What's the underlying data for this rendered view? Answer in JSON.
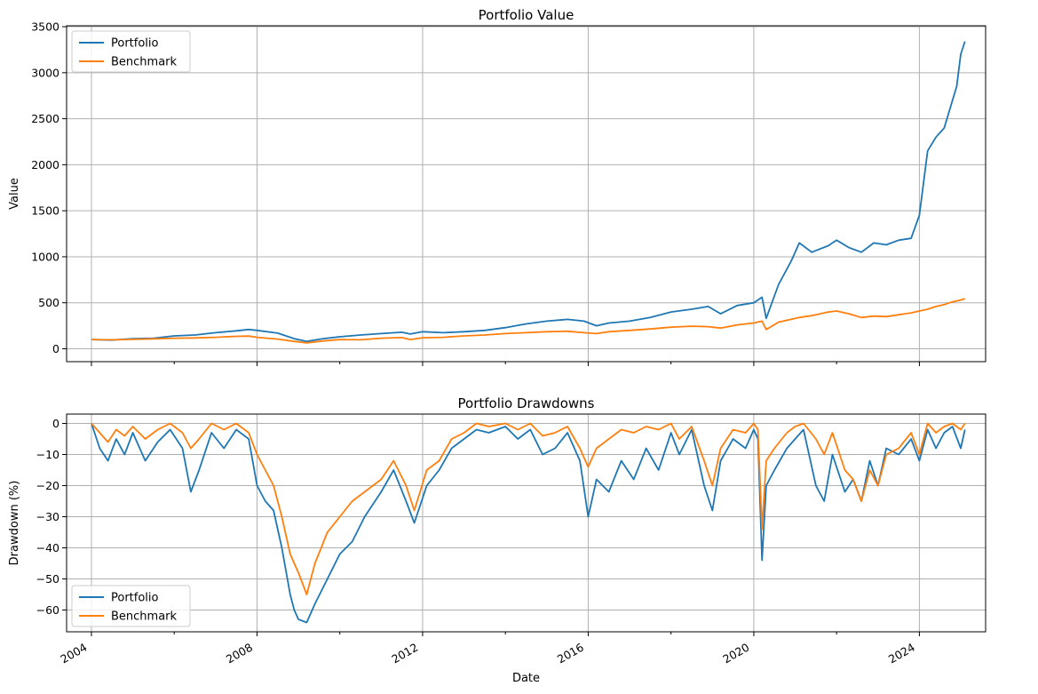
{
  "colors": {
    "portfolio": "#1f77b4",
    "benchmark": "#ff7f0e",
    "grid": "#b0b0b0"
  },
  "chart_data": [
    {
      "type": "line",
      "title": "Portfolio Value",
      "xlabel": "",
      "ylabel": "Value",
      "xlim": [
        2003.4,
        2025.6
      ],
      "ylim": [
        -140,
        3510
      ],
      "x_ticks": [
        2004,
        2008,
        2012,
        2016,
        2020,
        2024
      ],
      "y_ticks": [
        0,
        500,
        1000,
        1500,
        2000,
        2500,
        3000,
        3500
      ],
      "y_tick_labels": [
        "0",
        "500",
        "1000",
        "1500",
        "2000",
        "2500",
        "3000",
        "3500"
      ],
      "grid": true,
      "legend": "upper left",
      "legend_items": [
        "Portfolio",
        "Benchmark"
      ],
      "series": [
        {
          "name": "Portfolio",
          "color": "#1f77b4",
          "x": [
            2004.0,
            2004.5,
            2005.0,
            2005.5,
            2006.0,
            2006.5,
            2007.0,
            2007.5,
            2007.8,
            2008.0,
            2008.5,
            2008.9,
            2009.2,
            2009.6,
            2010.0,
            2010.5,
            2011.0,
            2011.5,
            2011.7,
            2012.0,
            2012.5,
            2013.0,
            2013.5,
            2014.0,
            2014.5,
            2015.0,
            2015.5,
            2015.9,
            2016.2,
            2016.5,
            2017.0,
            2017.5,
            2018.0,
            2018.5,
            2018.9,
            2019.2,
            2019.6,
            2020.0,
            2020.2,
            2020.3,
            2020.6,
            2020.9,
            2021.1,
            2021.4,
            2021.8,
            2022.0,
            2022.3,
            2022.6,
            2022.9,
            2023.2,
            2023.5,
            2023.8,
            2024.0,
            2024.2,
            2024.4,
            2024.6,
            2024.8,
            2024.9,
            2025.0,
            2025.1
          ],
          "values": [
            100,
            95,
            110,
            115,
            140,
            150,
            175,
            195,
            210,
            200,
            170,
            110,
            80,
            110,
            130,
            150,
            165,
            180,
            160,
            185,
            175,
            185,
            200,
            230,
            270,
            300,
            320,
            300,
            250,
            280,
            300,
            340,
            400,
            430,
            460,
            380,
            470,
            500,
            560,
            330,
            700,
            950,
            1150,
            1050,
            1120,
            1180,
            1100,
            1050,
            1150,
            1130,
            1180,
            1200,
            1450,
            2150,
            2300,
            2400,
            2700,
            2850,
            3200,
            3340
          ]
        },
        {
          "name": "Benchmark",
          "color": "#ff7f0e",
          "x": [
            2004.0,
            2004.5,
            2005.0,
            2005.5,
            2006.0,
            2006.5,
            2007.0,
            2007.5,
            2007.8,
            2008.0,
            2008.5,
            2008.9,
            2009.2,
            2009.6,
            2010.0,
            2010.5,
            2011.0,
            2011.5,
            2011.7,
            2012.0,
            2012.5,
            2013.0,
            2013.5,
            2014.0,
            2014.5,
            2015.0,
            2015.5,
            2015.9,
            2016.2,
            2016.5,
            2017.0,
            2017.5,
            2018.0,
            2018.5,
            2018.9,
            2019.2,
            2019.6,
            2020.0,
            2020.2,
            2020.3,
            2020.6,
            2020.9,
            2021.1,
            2021.4,
            2021.8,
            2022.0,
            2022.3,
            2022.6,
            2022.9,
            2023.2,
            2023.5,
            2023.8,
            2024.0,
            2024.2,
            2024.4,
            2024.6,
            2024.8,
            2024.9,
            2025.0,
            2025.1
          ],
          "values": [
            100,
            98,
            102,
            108,
            115,
            118,
            125,
            135,
            138,
            125,
            105,
            80,
            65,
            85,
            100,
            98,
            115,
            122,
            100,
            120,
            125,
            140,
            150,
            165,
            175,
            185,
            190,
            175,
            165,
            185,
            200,
            215,
            235,
            245,
            240,
            225,
            260,
            280,
            300,
            210,
            290,
            320,
            340,
            360,
            400,
            410,
            380,
            340,
            355,
            350,
            370,
            390,
            410,
            430,
            460,
            480,
            510,
            520,
            530,
            545
          ]
        }
      ]
    },
    {
      "type": "line",
      "title": "Portfolio Drawdowns",
      "xlabel": "Date",
      "ylabel": "Drawdown (%)",
      "xlim": [
        2003.4,
        2025.6
      ],
      "ylim": [
        -67,
        3
      ],
      "x_ticks": [
        2004,
        2008,
        2012,
        2016,
        2020,
        2024
      ],
      "x_tick_labels": [
        "2004",
        "2008",
        "2012",
        "2016",
        "2020",
        "2024"
      ],
      "y_ticks": [
        0,
        -10,
        -20,
        -30,
        -40,
        -50,
        -60
      ],
      "y_tick_labels": [
        "0",
        "−10",
        "−20",
        "−30",
        "−40",
        "−50",
        "−60"
      ],
      "grid": true,
      "legend": "lower left",
      "legend_items": [
        "Portfolio",
        "Benchmark"
      ],
      "series": [
        {
          "name": "Portfolio",
          "color": "#1f77b4",
          "x": [
            2004.0,
            2004.2,
            2004.4,
            2004.6,
            2004.8,
            2005.0,
            2005.3,
            2005.6,
            2005.9,
            2006.2,
            2006.4,
            2006.6,
            2006.9,
            2007.2,
            2007.5,
            2007.8,
            2008.0,
            2008.2,
            2008.4,
            2008.6,
            2008.8,
            2008.9,
            2009.0,
            2009.2,
            2009.4,
            2009.7,
            2010.0,
            2010.3,
            2010.6,
            2011.0,
            2011.3,
            2011.6,
            2011.8,
            2012.1,
            2012.4,
            2012.7,
            2013.0,
            2013.3,
            2013.6,
            2014.0,
            2014.3,
            2014.6,
            2014.9,
            2015.2,
            2015.5,
            2015.8,
            2016.0,
            2016.2,
            2016.5,
            2016.8,
            2017.1,
            2017.4,
            2017.7,
            2018.0,
            2018.2,
            2018.5,
            2018.8,
            2019.0,
            2019.2,
            2019.5,
            2019.8,
            2020.0,
            2020.1,
            2020.2,
            2020.3,
            2020.5,
            2020.8,
            2021.0,
            2021.2,
            2021.5,
            2021.7,
            2021.9,
            2022.2,
            2022.4,
            2022.6,
            2022.8,
            2023.0,
            2023.2,
            2023.5,
            2023.8,
            2024.0,
            2024.2,
            2024.4,
            2024.6,
            2024.8,
            2025.0,
            2025.1
          ],
          "values": [
            0,
            -8,
            -12,
            -5,
            -10,
            -3,
            -12,
            -6,
            -2,
            -8,
            -22,
            -15,
            -3,
            -8,
            -2,
            -5,
            -20,
            -25,
            -28,
            -40,
            -55,
            -60,
            -63,
            -64,
            -58,
            -50,
            -42,
            -38,
            -30,
            -22,
            -15,
            -25,
            -32,
            -20,
            -15,
            -8,
            -5,
            -2,
            -3,
            -1,
            -5,
            -2,
            -10,
            -8,
            -3,
            -12,
            -30,
            -18,
            -22,
            -12,
            -18,
            -8,
            -15,
            -3,
            -10,
            -2,
            -20,
            -28,
            -12,
            -5,
            -8,
            -2,
            -5,
            -44,
            -20,
            -15,
            -8,
            -5,
            -2,
            -20,
            -25,
            -10,
            -22,
            -18,
            -25,
            -12,
            -20,
            -8,
            -10,
            -5,
            -12,
            -2,
            -8,
            -3,
            -1,
            -8,
            -2
          ]
        },
        {
          "name": "Benchmark",
          "color": "#ff7f0e",
          "x": [
            2004.0,
            2004.2,
            2004.4,
            2004.6,
            2004.8,
            2005.0,
            2005.3,
            2005.6,
            2005.9,
            2006.2,
            2006.4,
            2006.6,
            2006.9,
            2007.2,
            2007.5,
            2007.8,
            2008.0,
            2008.2,
            2008.4,
            2008.6,
            2008.8,
            2008.9,
            2009.0,
            2009.2,
            2009.4,
            2009.7,
            2010.0,
            2010.3,
            2010.6,
            2011.0,
            2011.3,
            2011.6,
            2011.8,
            2012.1,
            2012.4,
            2012.7,
            2013.0,
            2013.3,
            2013.6,
            2014.0,
            2014.3,
            2014.6,
            2014.9,
            2015.2,
            2015.5,
            2015.8,
            2016.0,
            2016.2,
            2016.5,
            2016.8,
            2017.1,
            2017.4,
            2017.7,
            2018.0,
            2018.2,
            2018.5,
            2018.8,
            2019.0,
            2019.2,
            2019.5,
            2019.8,
            2020.0,
            2020.1,
            2020.2,
            2020.3,
            2020.5,
            2020.8,
            2021.0,
            2021.2,
            2021.5,
            2021.7,
            2021.9,
            2022.2,
            2022.4,
            2022.6,
            2022.8,
            2023.0,
            2023.2,
            2023.5,
            2023.8,
            2024.0,
            2024.2,
            2024.4,
            2024.6,
            2024.8,
            2025.0,
            2025.1
          ],
          "values": [
            0,
            -3,
            -6,
            -2,
            -4,
            -1,
            -5,
            -2,
            0,
            -3,
            -8,
            -5,
            0,
            -2,
            0,
            -3,
            -10,
            -15,
            -20,
            -30,
            -42,
            -45,
            -48,
            -55,
            -45,
            -35,
            -30,
            -25,
            -22,
            -18,
            -12,
            -20,
            -28,
            -15,
            -12,
            -5,
            -3,
            0,
            -1,
            0,
            -2,
            0,
            -4,
            -3,
            -1,
            -8,
            -14,
            -8,
            -5,
            -2,
            -3,
            -1,
            -2,
            0,
            -5,
            -1,
            -12,
            -20,
            -8,
            -2,
            -3,
            0,
            -2,
            -34,
            -12,
            -8,
            -3,
            -1,
            0,
            -5,
            -10,
            -3,
            -15,
            -18,
            -25,
            -15,
            -20,
            -10,
            -8,
            -3,
            -10,
            0,
            -3,
            -1,
            0,
            -2,
            0
          ]
        }
      ]
    }
  ]
}
